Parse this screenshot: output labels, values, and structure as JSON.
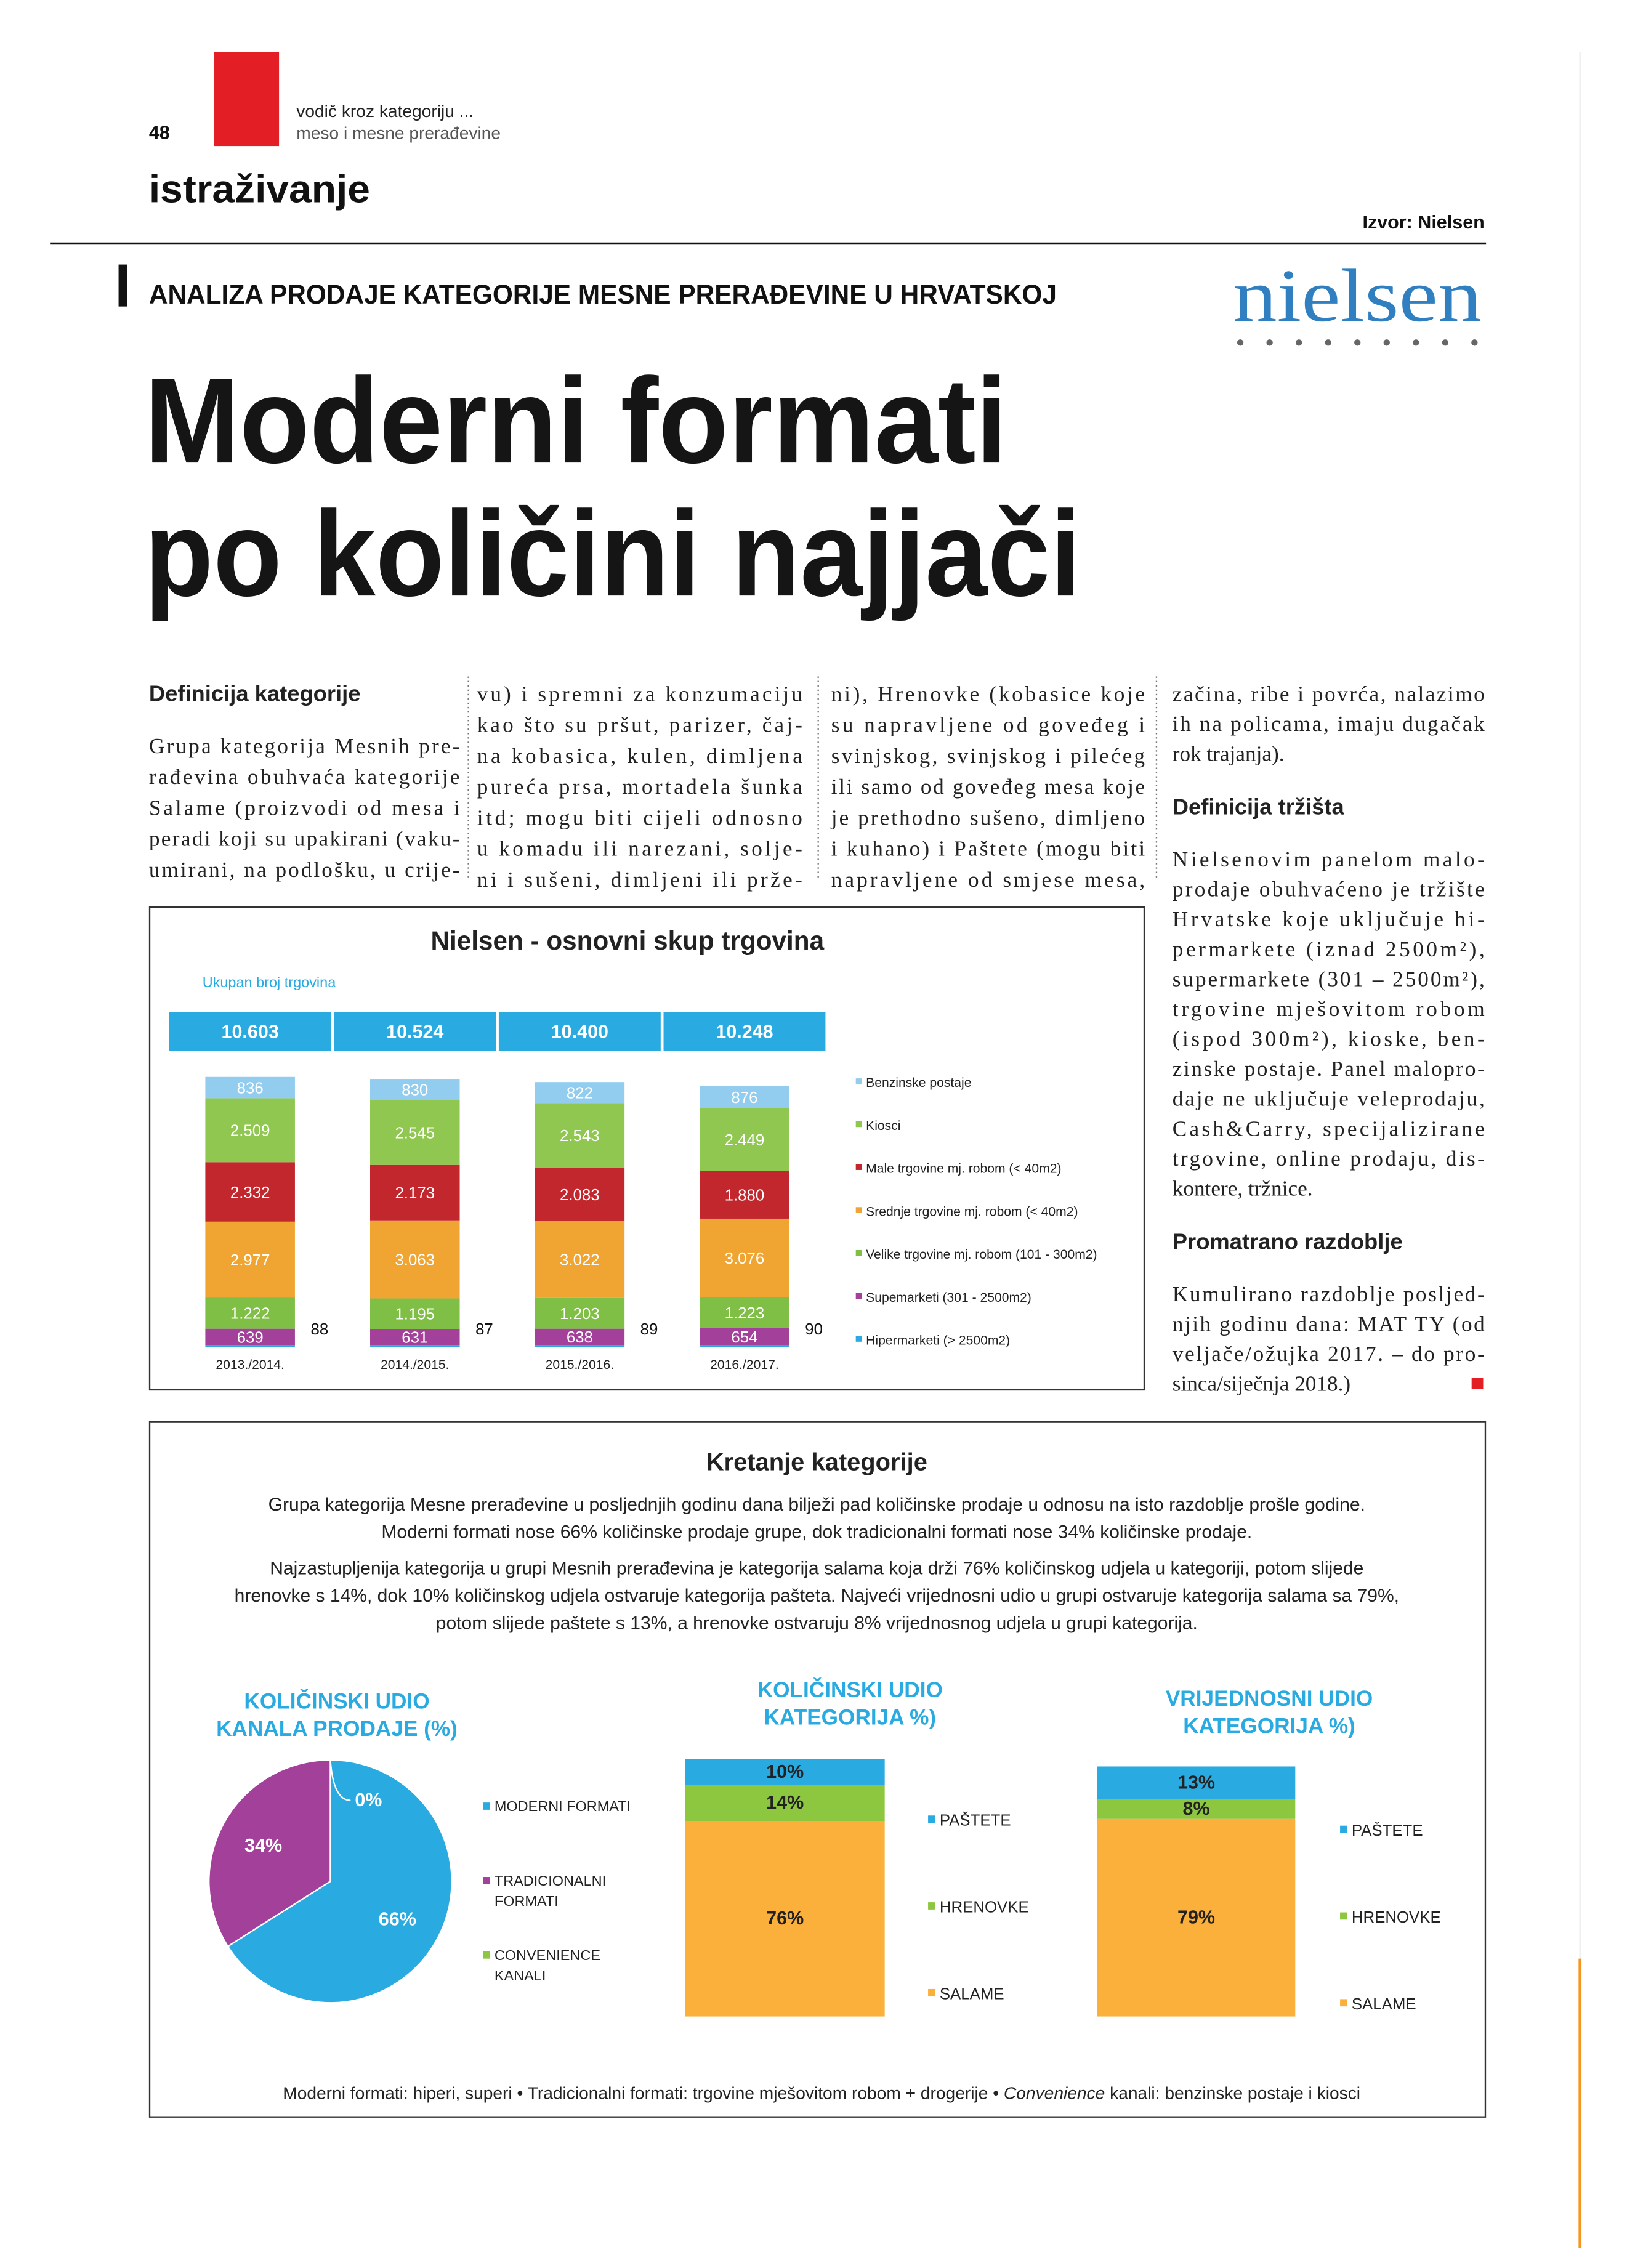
{
  "header": {
    "page_number": "48",
    "guide": "vodič kroz kategoriju ...",
    "subguide": "meso i mesne prerađevine",
    "section": "istraživanje",
    "source": "Izvor: Nielsen",
    "kicker": "ANALIZA PRODAJE KATEGORIJE MESNE PRERAĐEVINE U HRVATSKOJ",
    "logo": "nielsen"
  },
  "headline": [
    "Moderni formati",
    "po količini najjači"
  ],
  "article": {
    "columns": [
      [
        {
          "heading": "Definicija kategorije"
        },
        {
          "lines": [
            "Grupa kategorija Mesnih pre-",
            "rađevina obuhvaća kategorije",
            "Salame (proizvodi od mesa i",
            "peradi koji su upakirani (vaku-",
            "umirani, na podlošku, u crije-"
          ]
        }
      ],
      [
        {
          "lines": [
            "vu) i spremni za konzumaciju",
            "kao što su pršut, parizer, čaj-",
            "na kobasica, kulen, dimljena",
            "pureća prsa, mortadela šunka",
            "itd; mogu biti cijeli odnosno",
            "u komadu ili narezani, solje-",
            "ni i sušeni, dimljeni ili prže-"
          ]
        }
      ],
      [
        {
          "lines": [
            "ni), Hrenovke (kobasice koje",
            "su napravljene od goveđeg i",
            "svinjskog, svinjskog i pilećeg",
            "ili samo od goveđeg mesa koje",
            "je prethodno sušeno, dimljeno",
            "i kuhano) i Paštete (mogu biti",
            "napravljene od smjese mesa,"
          ]
        }
      ],
      [
        {
          "lines": [
            "začina, ribe i povrća, nalazimo",
            "ih na policama, imaju dugačak",
            "rok trajanja)."
          ]
        },
        {
          "heading": "Definicija tržišta"
        },
        {
          "lines": [
            "Nielsenovim panelom malo-",
            "prodaje obuhvaćeno je tržište",
            "Hrvatske koje uključuje hi-",
            "permarkete (iznad 2500m²),",
            "supermarkete (301 – 2500m²),",
            "trgovine mješovitom robom",
            "(ispod 300m²), kioske, ben-",
            "zinske postaje. Panel malopro-",
            "daje ne uključuje veleprodaju,",
            "Cash&Carry, specijalizirane",
            "trgovine, online prodaju, dis-",
            "kontere, tržnice."
          ]
        },
        {
          "heading": "Promatrano razdoblje"
        },
        {
          "lines": [
            "Kumulirano razdoblje posljed-",
            "njih godinu dana: MAT TY (od",
            "veljače/ožujka 2017. – do pro-",
            "sinca/siječnja 2018.)"
          ]
        }
      ]
    ]
  },
  "chart_data": [
    {
      "type": "bar",
      "stacked": true,
      "title": "Nielsen - osnovni skup trgovina",
      "subtitle": "Ukupan broj trgovina",
      "categories": [
        "2013./2014.",
        "2014./2015.",
        "2015./2016.",
        "2016./2017."
      ],
      "totals": {
        "values": [
          10603,
          10524,
          10400,
          10248
        ],
        "value_labels": [
          "10.603",
          "10.524",
          "10.400",
          "10.248"
        ],
        "color": "#29abe2"
      },
      "series": [
        {
          "name": "Hipermarketi (> 2500m2)",
          "color": "#29abe2",
          "values": [
            88,
            87,
            89,
            90
          ]
        },
        {
          "name": "Supemarketi (301 - 2500m2)",
          "color": "#a3409a",
          "values": [
            639,
            631,
            638,
            654
          ]
        },
        {
          "name": "Velike trgovine mj. robom (101 - 300m2)",
          "color": "#7fbf45",
          "values": [
            1222,
            1195,
            1203,
            1223
          ],
          "value_labels": [
            "1.222",
            "1.195",
            "1.203",
            "1.223"
          ]
        },
        {
          "name": "Srednje trgovine mj. robom (< 40m2)",
          "color": "#f0a431",
          "values": [
            2977,
            3063,
            3022,
            3076
          ],
          "value_labels": [
            "2.977",
            "3.063",
            "3.022",
            "3.076"
          ]
        },
        {
          "name": "Male trgovine mj. robom (< 40m2)",
          "color": "#c1272d",
          "values": [
            2332,
            2173,
            2083,
            1880
          ],
          "value_labels": [
            "2.332",
            "2.173",
            "2.083",
            "1.880"
          ]
        },
        {
          "name": "Kiosci",
          "color": "#8fc750",
          "values": [
            2509,
            2545,
            2543,
            2449
          ],
          "value_labels": [
            "2.509",
            "2.545",
            "2.543",
            "2.449"
          ]
        },
        {
          "name": "Benzinske postaje",
          "color": "#92cdef",
          "values": [
            836,
            830,
            822,
            876
          ]
        }
      ]
    },
    {
      "type": "pie",
      "title": [
        "KOLIČINSKI UDIO",
        "KANALA PRODAJE (%)"
      ],
      "categories": [
        "MODERNI FORMATI",
        "TRADICIONALNI FORMATI",
        "CONVENIENCE KANALI"
      ],
      "values": [
        66,
        34,
        0
      ],
      "value_labels": [
        "66%",
        "34%",
        "0%"
      ],
      "colors": [
        "#29abe2",
        "#a3409a",
        "#8dc63f"
      ]
    },
    {
      "type": "bar",
      "stacked": true,
      "title": [
        "KOLIČINSKI UDIO",
        "KATEGORIJA %)"
      ],
      "categories": [
        null
      ],
      "series": [
        {
          "name": "SALAME",
          "color": "#fbb03b",
          "values": [
            76
          ],
          "value_labels": [
            "76%"
          ]
        },
        {
          "name": "HRENOVKE",
          "color": "#8dc63f",
          "values": [
            14
          ],
          "value_labels": [
            "14%"
          ]
        },
        {
          "name": "PAŠTETE",
          "color": "#29abe2",
          "values": [
            10
          ],
          "value_labels": [
            "10%"
          ]
        }
      ]
    },
    {
      "type": "bar",
      "stacked": true,
      "title": [
        "VRIJEDNOSNI UDIO",
        "KATEGORIJA %)"
      ],
      "categories": [
        null
      ],
      "series": [
        {
          "name": "SALAME",
          "color": "#fbb03b",
          "values": [
            79
          ],
          "value_labels": [
            "79%"
          ]
        },
        {
          "name": "HRENOVKE",
          "color": "#8dc63f",
          "values": [
            8
          ],
          "value_labels": [
            "8%"
          ]
        },
        {
          "name": "PAŠTETE",
          "color": "#29abe2",
          "values": [
            13
          ],
          "value_labels": [
            "13%"
          ]
        }
      ]
    }
  ],
  "trend_box": {
    "title": "Kretanje kategorije",
    "paragraphs": [
      [
        "Grupa kategorija Mesne prerađevine u posljednjih godinu dana bilježi pad količinske prodaje u odnosu na isto razdoblje prošle godine.",
        "Moderni formati nose 66% količinske prodaje grupe, dok tradicionalni formati nose 34% količinske prodaje."
      ],
      [
        "Najzastupljenija kategorija u grupi Mesnih prerađevina je kategorija salama koja drži 76% količinskog udjela u kategoriji, potom slijede",
        "hrenovke s 14%, dok 10% količinskog udjela ostvaruje kategorija pašteta. Najveći vrijednosni udio u grupi ostvaruje kategorija salama sa 79%,",
        "potom slijede paštete s 13%, a hrenovke ostvaruju 8% vrijednosnog udjela u grupi kategorija."
      ]
    ],
    "footnote": [
      "Moderni formati: hiperi, superi • Tradicionalni formati: trgovine mješovitom robom + drogerije • ",
      "Convenience",
      " kanali: benzinske postaje i kiosci"
    ]
  }
}
